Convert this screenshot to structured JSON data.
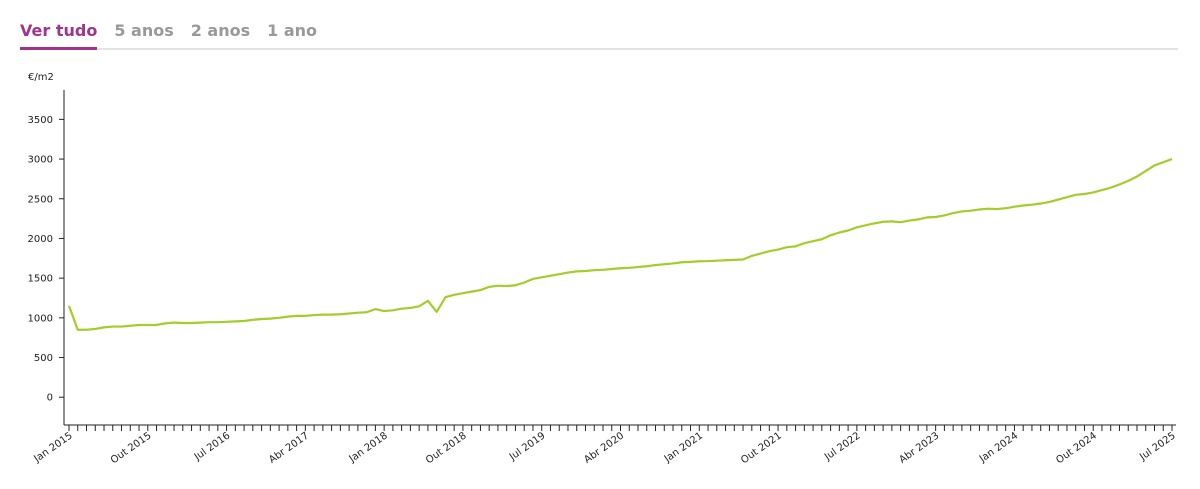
{
  "tabs": [
    "Ver tudo",
    "5 anos",
    "2 anos",
    "1 ano"
  ],
  "active_tab": 0,
  "chart_data": {
    "type": "line",
    "y_label": "€/m2",
    "categories": [
      "Jan 2015",
      null,
      null,
      null,
      null,
      null,
      null,
      null,
      null,
      "Out 2015",
      null,
      null,
      null,
      null,
      null,
      null,
      null,
      null,
      "Jul 2016",
      null,
      null,
      null,
      null,
      null,
      null,
      null,
      null,
      "Abr 2017",
      null,
      null,
      null,
      null,
      null,
      null,
      null,
      null,
      "Jan 2018",
      null,
      null,
      null,
      null,
      null,
      null,
      null,
      null,
      "Out 2018",
      null,
      null,
      null,
      null,
      null,
      null,
      null,
      null,
      "Jul 2019",
      null,
      null,
      null,
      null,
      null,
      null,
      null,
      null,
      "Abr 2020",
      null,
      null,
      null,
      null,
      null,
      null,
      null,
      null,
      "Jan 2021",
      null,
      null,
      null,
      null,
      null,
      null,
      null,
      null,
      "Out 2021",
      null,
      null,
      null,
      null,
      null,
      null,
      null,
      null,
      "Jul 2022",
      null,
      null,
      null,
      null,
      null,
      null,
      null,
      null,
      "Abr 2023",
      null,
      null,
      null,
      null,
      null,
      null,
      null,
      null,
      "Jan 2024",
      null,
      null,
      null,
      null,
      null,
      null,
      null,
      null,
      "Out 2024",
      null,
      null,
      null,
      null,
      null,
      null,
      null,
      null,
      "Jul 2025"
    ],
    "series": [
      {
        "color": "#a2cd2a",
        "values": [
          1150,
          850,
          850,
          860,
          880,
          890,
          890,
          900,
          910,
          910,
          910,
          930,
          940,
          935,
          935,
          940,
          945,
          945,
          950,
          955,
          960,
          975,
          985,
          990,
          1000,
          1015,
          1025,
          1025,
          1035,
          1040,
          1040,
          1045,
          1055,
          1065,
          1070,
          1110,
          1085,
          1095,
          1115,
          1125,
          1145,
          1215,
          1075,
          1260,
          1290,
          1310,
          1330,
          1350,
          1390,
          1405,
          1400,
          1410,
          1445,
          1490,
          1510,
          1530,
          1550,
          1570,
          1585,
          1590,
          1600,
          1605,
          1615,
          1625,
          1630,
          1640,
          1650,
          1665,
          1675,
          1685,
          1700,
          1705,
          1713,
          1715,
          1720,
          1725,
          1730,
          1735,
          1780,
          1810,
          1840,
          1860,
          1890,
          1900,
          1940,
          1965,
          1990,
          2040,
          2075,
          2100,
          2140,
          2165,
          2190,
          2210,
          2215,
          2205,
          2225,
          2240,
          2265,
          2270,
          2290,
          2320,
          2340,
          2350,
          2365,
          2375,
          2370,
          2380,
          2400,
          2415,
          2425,
          2440,
          2460,
          2490,
          2520,
          2550,
          2560,
          2580,
          2610,
          2640,
          2680,
          2725,
          2780,
          2850,
          2920,
          2960,
          3000
        ]
      }
    ],
    "ylim": [
      -350,
      3870
    ],
    "yticks": [
      0,
      500,
      1000,
      1500,
      2000,
      2500,
      3000,
      3500
    ]
  }
}
